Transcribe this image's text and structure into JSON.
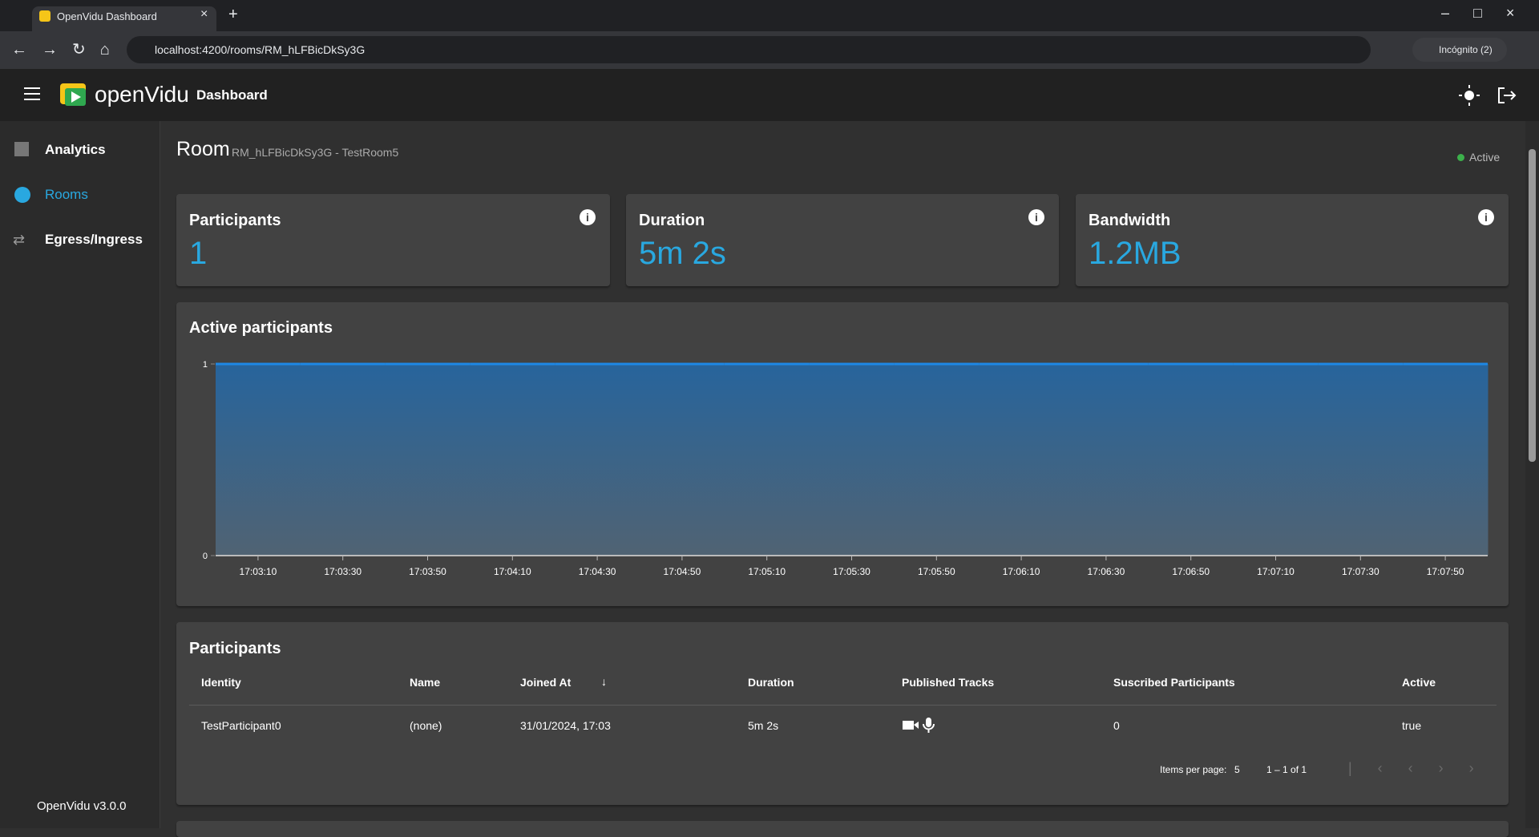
{
  "browser": {
    "tab_title": "OpenVidu Dashboard",
    "url": "localhost:4200/rooms/RM_hLFBicDkSy3G",
    "profile": "Incógnito (2)"
  },
  "app": {
    "logo": "openVidu",
    "section": "Dashboard"
  },
  "sidebar": {
    "items": [
      "Analytics",
      "Rooms",
      "Egress/Ingress"
    ],
    "version": "OpenVidu v3.0.0"
  },
  "room": {
    "title": "Room",
    "id": "RM_hLFBicDkSy3G - TestRoom5",
    "status": "Active"
  },
  "stats": [
    {
      "label": "Participants",
      "value": "1"
    },
    {
      "label": "Duration",
      "value": "5m 2s"
    },
    {
      "label": "Bandwidth",
      "value": "1.2MB"
    }
  ],
  "chart_data": {
    "type": "area",
    "title": "Active participants",
    "categories": [
      "17:03:10",
      "17:03:30",
      "17:03:50",
      "17:04:10",
      "17:04:30",
      "17:04:50",
      "17:05:10",
      "17:05:30",
      "17:05:50",
      "17:06:10",
      "17:06:30",
      "17:06:50",
      "17:07:10",
      "17:07:30",
      "17:07:50"
    ],
    "values": [
      1,
      1,
      1,
      1,
      1,
      1,
      1,
      1,
      1,
      1,
      1,
      1,
      1,
      1,
      1
    ],
    "color": "#1e88e5",
    "ylim": [
      0,
      1
    ],
    "yticks": [
      0,
      1
    ]
  },
  "participants": {
    "title": "Participants",
    "columns": [
      "Identity",
      "Name",
      "Joined At",
      "Duration",
      "Published Tracks",
      "Suscribed Participants",
      "Active"
    ],
    "rows": [
      {
        "identity": "TestParticipant0",
        "name": "(none)",
        "joined_at": "31/01/2024, 17:03",
        "duration": "5m 2s",
        "subscribed": "0",
        "active": "true"
      }
    ],
    "items_per_page_label": "Items per page:",
    "items_per_page": 5,
    "range": "1 – 1 of 1"
  }
}
